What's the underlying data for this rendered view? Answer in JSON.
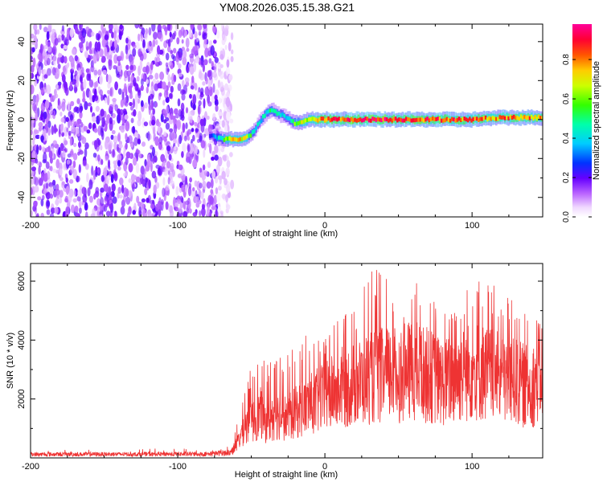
{
  "title": "YM08.2026.035.15.38.G21",
  "colors": {
    "line": "#ee3333",
    "spec_hue_low": "#ff00ff",
    "spec_hue_high": "#ff0000"
  },
  "chart_data": [
    {
      "type": "heatmap",
      "xlabel": "Height of straight line (km)",
      "ylabel": "Frequency (Hz)",
      "xlim": [
        -200,
        148
      ],
      "ylim": [
        -50,
        49
      ],
      "xticks": [
        "-200",
        "-100",
        "0",
        "100"
      ],
      "xtick_values": [
        -200,
        -100,
        0,
        100
      ],
      "yticks": [
        "-40",
        "-20",
        "0",
        "20",
        "40"
      ],
      "ytick_values": [
        -40,
        -20,
        0,
        20,
        40
      ],
      "colorbar": {
        "label": "Normalized spectral amplitude",
        "ticks": [
          "0.0",
          "0.2",
          "0.4",
          "0.6",
          "0.8"
        ],
        "tick_values": [
          0.0,
          0.2,
          0.4,
          0.6,
          0.8
        ],
        "range": [
          0,
          0.98
        ]
      },
      "noise_region": {
        "x_range": [
          -200,
          -63
        ],
        "amplitude_range": [
          0.05,
          0.22
        ]
      },
      "ridge": {
        "x": [
          -78,
          -70,
          -64,
          -58,
          -52,
          -48,
          -44,
          -40,
          -36,
          -32,
          -28,
          -24,
          -20,
          -10,
          0,
          20,
          40,
          60,
          80,
          100,
          120,
          148
        ],
        "freq_hz": [
          -8,
          -10,
          -10,
          -10,
          -9,
          -6,
          -1,
          3,
          5,
          3,
          2,
          0,
          -2,
          0,
          0,
          0,
          0,
          0,
          0,
          0,
          1,
          1
        ],
        "amplitude": [
          0.25,
          0.5,
          0.7,
          0.78,
          0.6,
          0.45,
          0.4,
          0.45,
          0.5,
          0.45,
          0.4,
          0.45,
          0.6,
          0.7,
          0.85,
          0.9,
          0.9,
          0.88,
          0.85,
          0.82,
          0.8,
          0.78
        ]
      }
    },
    {
      "type": "line",
      "xlabel": "Height of straight line (km)",
      "ylabel": "SNR (10 * v/v)",
      "xlim": [
        -200,
        148
      ],
      "ylim": [
        0,
        6600
      ],
      "xticks": [
        "-200",
        "-100",
        "0",
        "100"
      ],
      "xtick_values": [
        -200,
        -100,
        0,
        100
      ],
      "yticks": [
        "2000",
        "4000",
        "6000"
      ],
      "ytick_values": [
        2000,
        4000,
        6000
      ],
      "series": [
        {
          "envelope_x": [
            -200,
            -80,
            -65,
            -60,
            -55,
            -48,
            -44,
            -40,
            -32,
            -25,
            -15,
            0,
            10,
            20,
            30,
            40,
            50,
            60,
            70,
            80,
            90,
            100,
            110,
            120,
            130,
            140,
            148
          ],
          "envelope_median": [
            120,
            130,
            180,
            500,
            1200,
            1500,
            1800,
            1400,
            1700,
            1600,
            2000,
            2400,
            2800,
            2900,
            3200,
            3300,
            3300,
            3500,
            3300,
            3000,
            3200,
            3500,
            3400,
            3100,
            3000,
            2800,
            3500
          ],
          "envelope_peak": [
            320,
            340,
            400,
            1300,
            2600,
            3200,
            3700,
            3100,
            4000,
            3500,
            4200,
            4200,
            4800,
            5000,
            6300,
            6500,
            5200,
            6000,
            5800,
            5000,
            5300,
            6200,
            5900,
            5800,
            5400,
            5000,
            4400
          ]
        }
      ]
    }
  ]
}
